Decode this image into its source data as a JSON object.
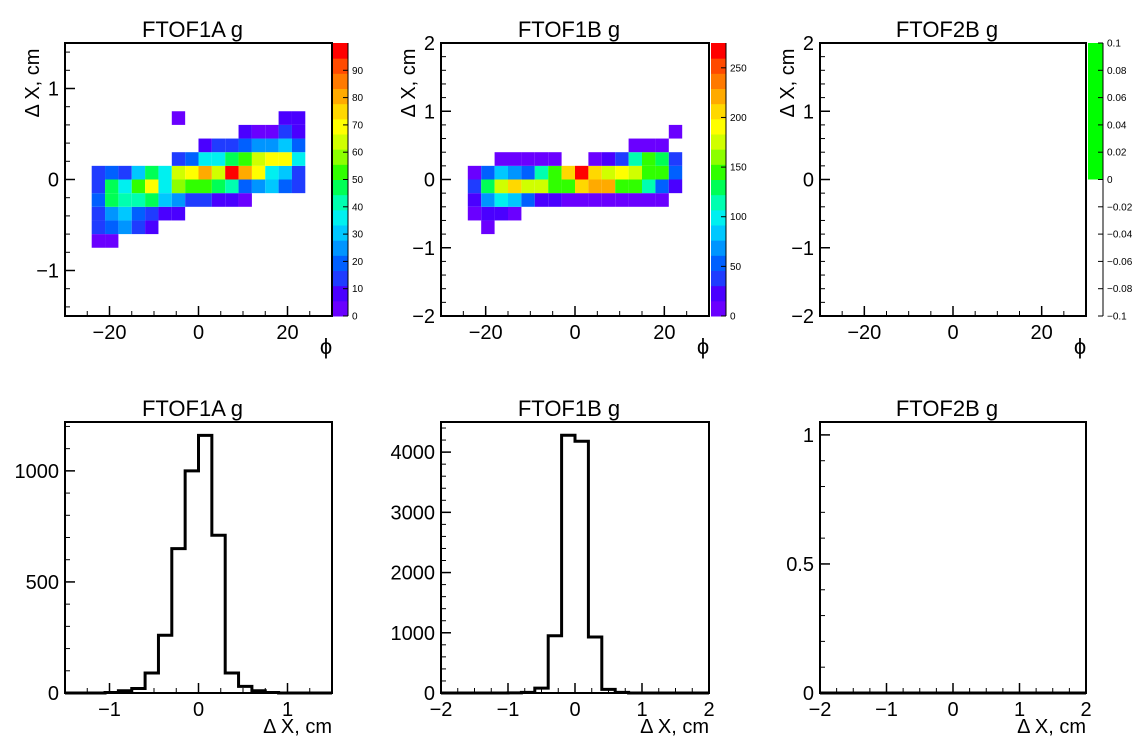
{
  "chart_data": [
    {
      "id": "p1",
      "type": "heatmap",
      "title": "FTOF1A g",
      "xlabel": "ϕ",
      "ylabel": "Δ X, cm",
      "xlim": [
        -30,
        30
      ],
      "ylim": [
        -1.5,
        1.5
      ],
      "xticks": [
        -20,
        0,
        20
      ],
      "yticks": [
        -1,
        0,
        1
      ],
      "xticklabels": [
        "−20",
        "0",
        "20"
      ],
      "yticklabels": [
        "−1",
        "0",
        "1"
      ],
      "bin_w": 3,
      "bin_h": 0.15,
      "zlim": [
        0,
        100
      ],
      "colorbar_ticks": [
        0,
        10,
        20,
        30,
        40,
        50,
        60,
        70,
        80,
        90
      ],
      "cells": [
        [
          -24,
          -0.75,
          5
        ],
        [
          -21,
          -0.75,
          5
        ],
        [
          -24,
          -0.6,
          12
        ],
        [
          -21,
          -0.6,
          20
        ],
        [
          -18,
          -0.6,
          25
        ],
        [
          -15,
          -0.6,
          15
        ],
        [
          -12,
          -0.6,
          6
        ],
        [
          -24,
          -0.45,
          15
        ],
        [
          -21,
          -0.45,
          25
        ],
        [
          -18,
          -0.45,
          30
        ],
        [
          -15,
          -0.45,
          22
        ],
        [
          -12,
          -0.45,
          16
        ],
        [
          -9,
          -0.45,
          10
        ],
        [
          -6,
          -0.45,
          6
        ],
        [
          -24,
          -0.3,
          20
        ],
        [
          -21,
          -0.3,
          45
        ],
        [
          -18,
          -0.3,
          40
        ],
        [
          -15,
          -0.3,
          40
        ],
        [
          -12,
          -0.3,
          45
        ],
        [
          -9,
          -0.3,
          30
        ],
        [
          -6,
          -0.3,
          25
        ],
        [
          -3,
          -0.3,
          15
        ],
        [
          0,
          -0.3,
          12
        ],
        [
          3,
          -0.3,
          6
        ],
        [
          6,
          -0.3,
          6
        ],
        [
          9,
          -0.3,
          4
        ],
        [
          -24,
          -0.15,
          15
        ],
        [
          -21,
          -0.15,
          48
        ],
        [
          -18,
          -0.15,
          35
        ],
        [
          -15,
          -0.15,
          55
        ],
        [
          -12,
          -0.15,
          70
        ],
        [
          -9,
          -0.15,
          38
        ],
        [
          -6,
          -0.15,
          58
        ],
        [
          -3,
          -0.15,
          55
        ],
        [
          0,
          -0.15,
          50
        ],
        [
          3,
          -0.15,
          48
        ],
        [
          6,
          -0.15,
          40
        ],
        [
          9,
          -0.15,
          22
        ],
        [
          12,
          -0.15,
          25
        ],
        [
          15,
          -0.15,
          30
        ],
        [
          18,
          -0.15,
          20
        ],
        [
          21,
          -0.15,
          15
        ],
        [
          -24,
          0.0,
          12
        ],
        [
          -21,
          0.0,
          20
        ],
        [
          -18,
          0.0,
          15
        ],
        [
          -15,
          0.0,
          30
        ],
        [
          -12,
          0.0,
          45
        ],
        [
          -9,
          0.0,
          35
        ],
        [
          -6,
          0.0,
          62
        ],
        [
          -3,
          0.0,
          72
        ],
        [
          0,
          0.0,
          82
        ],
        [
          3,
          0.0,
          65
        ],
        [
          6,
          0.0,
          96
        ],
        [
          9,
          0.0,
          82
        ],
        [
          12,
          0.0,
          72
        ],
        [
          15,
          0.0,
          35
        ],
        [
          18,
          0.0,
          30
        ],
        [
          21,
          0.0,
          15
        ],
        [
          -6,
          0.15,
          12
        ],
        [
          -3,
          0.15,
          18
        ],
        [
          0,
          0.15,
          38
        ],
        [
          3,
          0.15,
          35
        ],
        [
          6,
          0.15,
          45
        ],
        [
          9,
          0.15,
          55
        ],
        [
          12,
          0.15,
          65
        ],
        [
          15,
          0.15,
          70
        ],
        [
          18,
          0.15,
          70
        ],
        [
          21,
          0.15,
          35
        ],
        [
          0,
          0.3,
          8
        ],
        [
          3,
          0.3,
          12
        ],
        [
          6,
          0.3,
          15
        ],
        [
          9,
          0.3,
          20
        ],
        [
          12,
          0.3,
          25
        ],
        [
          15,
          0.3,
          25
        ],
        [
          18,
          0.3,
          30
        ],
        [
          21,
          0.3,
          20
        ],
        [
          9,
          0.45,
          6
        ],
        [
          12,
          0.45,
          5
        ],
        [
          15,
          0.45,
          5
        ],
        [
          18,
          0.45,
          12
        ],
        [
          21,
          0.45,
          6
        ],
        [
          -6,
          0.6,
          5
        ],
        [
          18,
          0.6,
          10
        ],
        [
          21,
          0.6,
          8
        ]
      ]
    },
    {
      "id": "p2",
      "type": "heatmap",
      "title": "FTOF1B g",
      "xlabel": "ϕ",
      "ylabel": "Δ X, cm",
      "xlim": [
        -30,
        30
      ],
      "ylim": [
        -2,
        2
      ],
      "xticks": [
        -20,
        0,
        20
      ],
      "yticks": [
        -2,
        -1,
        0,
        1,
        2
      ],
      "xticklabels": [
        "−20",
        "0",
        "20"
      ],
      "yticklabels": [
        "−2",
        "−1",
        "0",
        "1",
        "2"
      ],
      "bin_w": 3,
      "bin_h": 0.2,
      "zlim": [
        0,
        275
      ],
      "colorbar_ticks": [
        0,
        50,
        100,
        150,
        200,
        250
      ],
      "colorbar_ticklabels": [
        "0",
        "50",
        "100",
        "150",
        "200",
        "250"
      ],
      "cells": [
        [
          -21,
          -0.8,
          10
        ],
        [
          -24,
          -0.6,
          10
        ],
        [
          -21,
          -0.6,
          30
        ],
        [
          -18,
          -0.6,
          20
        ],
        [
          -15,
          -0.6,
          8
        ],
        [
          -24,
          -0.4,
          30
        ],
        [
          -21,
          -0.4,
          70
        ],
        [
          -18,
          -0.4,
          100
        ],
        [
          -15,
          -0.4,
          80
        ],
        [
          -12,
          -0.4,
          50
        ],
        [
          -9,
          -0.4,
          25
        ],
        [
          -6,
          -0.4,
          20
        ],
        [
          -3,
          -0.4,
          15
        ],
        [
          0,
          -0.4,
          15
        ],
        [
          3,
          -0.4,
          12
        ],
        [
          6,
          -0.4,
          12
        ],
        [
          9,
          -0.4,
          10
        ],
        [
          12,
          -0.4,
          10
        ],
        [
          15,
          -0.4,
          10
        ],
        [
          18,
          -0.4,
          8
        ],
        [
          -24,
          -0.2,
          40
        ],
        [
          -21,
          -0.2,
          130
        ],
        [
          -18,
          -0.2,
          170
        ],
        [
          -15,
          -0.2,
          200
        ],
        [
          -12,
          -0.2,
          170
        ],
        [
          -9,
          -0.2,
          180
        ],
        [
          -6,
          -0.2,
          150
        ],
        [
          -3,
          -0.2,
          140
        ],
        [
          0,
          -0.2,
          200
        ],
        [
          3,
          -0.2,
          220
        ],
        [
          6,
          -0.2,
          220
        ],
        [
          9,
          -0.2,
          140
        ],
        [
          12,
          -0.2,
          150
        ],
        [
          15,
          -0.2,
          110
        ],
        [
          18,
          -0.2,
          60
        ],
        [
          21,
          -0.2,
          20
        ],
        [
          -24,
          0.0,
          15
        ],
        [
          -21,
          0.0,
          60
        ],
        [
          -18,
          0.0,
          80
        ],
        [
          -15,
          0.0,
          70
        ],
        [
          -12,
          0.0,
          60
        ],
        [
          -9,
          0.0,
          110
        ],
        [
          -6,
          0.0,
          150
        ],
        [
          -3,
          0.0,
          200
        ],
        [
          0,
          0.0,
          270
        ],
        [
          3,
          0.0,
          200
        ],
        [
          6,
          0.0,
          180
        ],
        [
          9,
          0.0,
          190
        ],
        [
          12,
          0.0,
          180
        ],
        [
          15,
          0.0,
          140
        ],
        [
          18,
          0.0,
          140
        ],
        [
          21,
          0.0,
          60
        ],
        [
          -18,
          0.2,
          10
        ],
        [
          -15,
          0.2,
          12
        ],
        [
          -12,
          0.2,
          15
        ],
        [
          -9,
          0.2,
          15
        ],
        [
          -6,
          0.2,
          15
        ],
        [
          3,
          0.2,
          15
        ],
        [
          6,
          0.2,
          20
        ],
        [
          9,
          0.2,
          40
        ],
        [
          12,
          0.2,
          120
        ],
        [
          15,
          0.2,
          150
        ],
        [
          18,
          0.2,
          130
        ],
        [
          21,
          0.2,
          40
        ],
        [
          12,
          0.4,
          10
        ],
        [
          15,
          0.4,
          10
        ],
        [
          18,
          0.4,
          12
        ],
        [
          21,
          0.6,
          12
        ]
      ]
    },
    {
      "id": "p3",
      "type": "heatmap",
      "title": "FTOF2B g",
      "xlabel": "ϕ",
      "ylabel": "Δ X, cm",
      "xlim": [
        -30,
        30
      ],
      "ylim": [
        -2,
        2
      ],
      "xticks": [
        -20,
        0,
        20
      ],
      "yticks": [
        -2,
        -1,
        0,
        1,
        2
      ],
      "xticklabels": [
        "−20",
        "0",
        "20"
      ],
      "yticklabels": [
        "−2",
        "−1",
        "0",
        "1",
        "2"
      ],
      "bin_w": 3,
      "bin_h": 0.2,
      "zlim": [
        -0.1,
        0.1
      ],
      "colorbar_ticks": [
        -0.1,
        -0.08,
        -0.06,
        -0.04,
        -0.02,
        0,
        0.02,
        0.04,
        0.06,
        0.08,
        0.1
      ],
      "colorbar_ticklabels": [
        "−0.1",
        "−0.08",
        "−0.06",
        "−0.04",
        "−0.02",
        "0",
        "0.02",
        "0.04",
        "0.06",
        "0.08",
        "0.1"
      ],
      "colorbar_fill": {
        "from": 0,
        "to": 0.1,
        "color": "#00ff00"
      },
      "cells": []
    },
    {
      "id": "p4",
      "type": "bar",
      "title": "FTOF1A g",
      "xlabel": "Δ X, cm",
      "ylabel": "",
      "xlim": [
        -1.5,
        1.5
      ],
      "ylim": [
        0,
        1220
      ],
      "xticks": [
        -1,
        0,
        1
      ],
      "yticks": [
        0,
        500,
        1000
      ],
      "xticklabels": [
        "−1",
        "0",
        "1"
      ],
      "yticklabels": [
        "0",
        "500",
        "1000"
      ],
      "bin_edges": [
        -1.5,
        -1.35,
        -1.2,
        -1.05,
        -0.9,
        -0.75,
        -0.6,
        -0.45,
        -0.3,
        -0.15,
        0,
        0.15,
        0.3,
        0.45,
        0.6,
        0.75,
        0.9,
        1.05,
        1.2,
        1.35,
        1.5
      ],
      "values": [
        0,
        0,
        0,
        2,
        10,
        20,
        90,
        260,
        650,
        1000,
        1160,
        710,
        90,
        30,
        10,
        2,
        0,
        0,
        0,
        0
      ]
    },
    {
      "id": "p5",
      "type": "bar",
      "title": "FTOF1B g",
      "xlabel": "Δ X, cm",
      "ylabel": "",
      "xlim": [
        -2,
        2
      ],
      "ylim": [
        0,
        4500
      ],
      "xticks": [
        -2,
        -1,
        0,
        1,
        2
      ],
      "yticks": [
        0,
        1000,
        2000,
        3000,
        4000
      ],
      "xticklabels": [
        "−2",
        "−1",
        "0",
        "1",
        "2"
      ],
      "yticklabels": [
        "0",
        "1000",
        "2000",
        "3000",
        "4000"
      ],
      "bin_edges": [
        -2,
        -1.8,
        -1.6,
        -1.4,
        -1.2,
        -1.0,
        -0.8,
        -0.6,
        -0.4,
        -0.2,
        0,
        0.2,
        0.4,
        0.6,
        0.8,
        1.0,
        1.2,
        1.4,
        1.6,
        1.8,
        2.0
      ],
      "values": [
        0,
        0,
        0,
        0,
        0,
        2,
        10,
        80,
        950,
        4280,
        4180,
        930,
        60,
        10,
        0,
        0,
        0,
        0,
        0,
        0
      ]
    },
    {
      "id": "p6",
      "type": "bar",
      "title": "FTOF2B g",
      "xlabel": "Δ X, cm",
      "ylabel": "",
      "xlim": [
        -2,
        2
      ],
      "ylim": [
        0,
        1.05
      ],
      "xticks": [
        -2,
        -1,
        0,
        1,
        2
      ],
      "yticks": [
        0,
        0.5,
        1
      ],
      "xticklabels": [
        "−2",
        "−1",
        "0",
        "1",
        "2"
      ],
      "yticklabels": [
        "0",
        "0.5",
        "1"
      ],
      "bin_edges": [
        -2,
        -1.8,
        -1.6,
        -1.4,
        -1.2,
        -1.0,
        -0.8,
        -0.6,
        -0.4,
        -0.2,
        0,
        0.2,
        0.4,
        0.6,
        0.8,
        1.0,
        1.2,
        1.4,
        1.6,
        1.8,
        2.0
      ],
      "values": [
        0,
        0,
        0,
        0,
        0,
        0,
        0,
        0,
        0,
        0,
        0,
        0,
        0,
        0,
        0,
        0,
        0,
        0,
        0,
        0
      ]
    }
  ]
}
